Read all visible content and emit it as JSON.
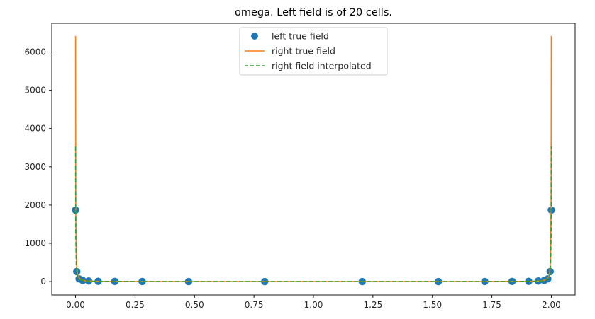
{
  "chart_data": {
    "type": "line",
    "title": "omega. Left field is of 20 cells.",
    "xlabel": "",
    "ylabel": "",
    "xlim": [
      -0.1,
      2.1
    ],
    "ylim": [
      -350,
      6750
    ],
    "xticks": [
      0.0,
      0.25,
      0.5,
      0.75,
      1.0,
      1.25,
      1.5,
      1.75,
      2.0
    ],
    "xtick_labels": [
      "0.00",
      "0.25",
      "0.50",
      "0.75",
      "1.00",
      "1.25",
      "1.50",
      "1.75",
      "2.00"
    ],
    "yticks": [
      0,
      1000,
      2000,
      3000,
      4000,
      5000,
      6000
    ],
    "ytick_labels": [
      "0",
      "1000",
      "2000",
      "3000",
      "4000",
      "5000",
      "6000"
    ],
    "grid": false,
    "legend_position": "top-center",
    "series": [
      {
        "name": "left true field",
        "style": "markers",
        "color": "#1f77b4",
        "x": [
          0.0,
          0.005,
          0.015,
          0.03,
          0.055,
          0.095,
          0.165,
          0.28,
          0.475,
          0.795,
          1.205,
          1.525,
          1.72,
          1.835,
          1.905,
          1.945,
          1.97,
          1.985,
          1.995,
          2.0
        ],
        "y": [
          1870,
          260,
          70,
          30,
          15,
          8,
          4,
          2,
          1,
          1,
          1,
          1,
          2,
          4,
          8,
          15,
          30,
          70,
          260,
          1870
        ]
      },
      {
        "name": "right true field",
        "style": "solid",
        "color": "#ff7f0e",
        "x": [
          0.0,
          0.001,
          0.003,
          0.006,
          0.01,
          0.02,
          0.04,
          0.08,
          0.15,
          0.3,
          0.6,
          1.0,
          1.4,
          1.7,
          1.85,
          1.92,
          1.96,
          1.98,
          1.99,
          1.994,
          1.997,
          1.999,
          2.0
        ],
        "y": [
          6420,
          1900,
          700,
          300,
          140,
          55,
          20,
          8,
          3,
          1,
          0.5,
          0.5,
          0.5,
          1,
          3,
          8,
          20,
          55,
          140,
          300,
          700,
          1900,
          6420
        ]
      },
      {
        "name": "right field interpolated",
        "style": "dashed",
        "color": "#2ca02c",
        "x": [
          0.0,
          0.001,
          0.003,
          0.006,
          0.01,
          0.02,
          0.04,
          0.08,
          0.15,
          0.3,
          0.6,
          1.0,
          1.4,
          1.7,
          1.85,
          1.92,
          1.96,
          1.98,
          1.99,
          1.994,
          1.997,
          1.999,
          2.0
        ],
        "y": [
          3530,
          1150,
          450,
          200,
          100,
          45,
          18,
          7,
          3,
          1,
          0.5,
          0.5,
          0.5,
          1,
          3,
          7,
          18,
          45,
          100,
          200,
          450,
          1150,
          3530
        ]
      }
    ]
  }
}
